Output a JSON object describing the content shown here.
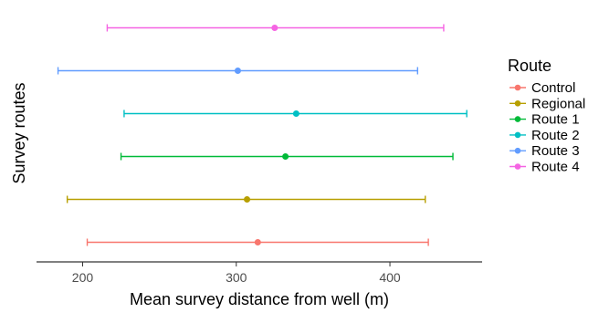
{
  "chart_data": {
    "type": "errorbar",
    "xlabel": "Mean survey distance from well (m)",
    "ylabel": "Survey routes",
    "xlim": [
      170,
      460
    ],
    "xticks": [
      200,
      300,
      400
    ],
    "ytick_labels_shown": false,
    "grid": false,
    "legend": {
      "title": "Route",
      "position": "right"
    },
    "series": [
      {
        "name": "Control",
        "mean": 314,
        "low": 203,
        "high": 425,
        "color": "#F8766D"
      },
      {
        "name": "Regional",
        "mean": 307,
        "low": 190,
        "high": 423,
        "color": "#B79F00"
      },
      {
        "name": "Route 1",
        "mean": 332,
        "low": 225,
        "high": 441,
        "color": "#00BA38"
      },
      {
        "name": "Route 2",
        "mean": 339,
        "low": 227,
        "high": 450,
        "color": "#00BFC4"
      },
      {
        "name": "Route 3",
        "mean": 301,
        "low": 184,
        "high": 418,
        "color": "#619CFF"
      },
      {
        "name": "Route 4",
        "mean": 325,
        "low": 216,
        "high": 435,
        "color": "#F564E3"
      }
    ]
  }
}
